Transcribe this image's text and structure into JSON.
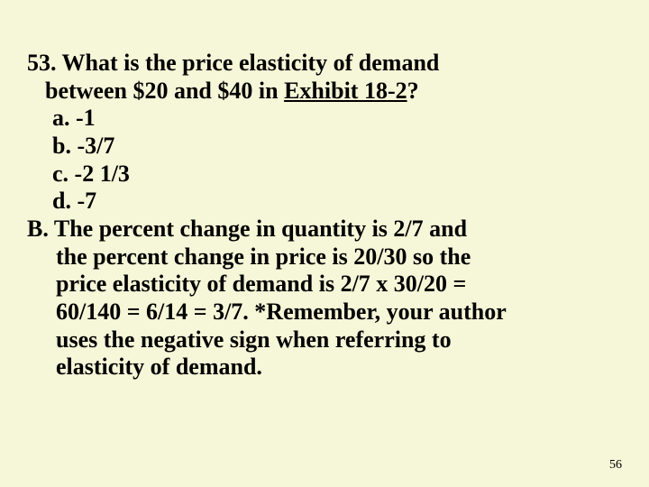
{
  "slide": {
    "background_color": "#f6f6d8",
    "text_color": "#000000",
    "font_family": "Times New Roman",
    "font_size_pt": 26,
    "font_weight": "bold",
    "page_number_fontsize": 14
  },
  "question": {
    "number": "53.",
    "line1_prefix": "53. What is the price elasticity of demand",
    "line2": "between $20 and $40 in ",
    "exhibit": "Exhibit 18-2",
    "line2_suffix": "?"
  },
  "options": {
    "a": "a. -1",
    "b": "b. -3/7",
    "c": "c. -2 1/3",
    "d": "d. -7"
  },
  "answer": {
    "letter": "B.",
    "line1": "B.  The percent change in quantity is 2/7 and",
    "line2": "the percent change in price is 20/30 so the",
    "line3": "price elasticity of demand is 2/7 x 30/20 =",
    "line4": "60/140 =  6/14 = 3/7. *Remember, your author",
    "line5": "uses the negative sign when referring to",
    "line6": "elasticity of demand."
  },
  "page_number": "56"
}
